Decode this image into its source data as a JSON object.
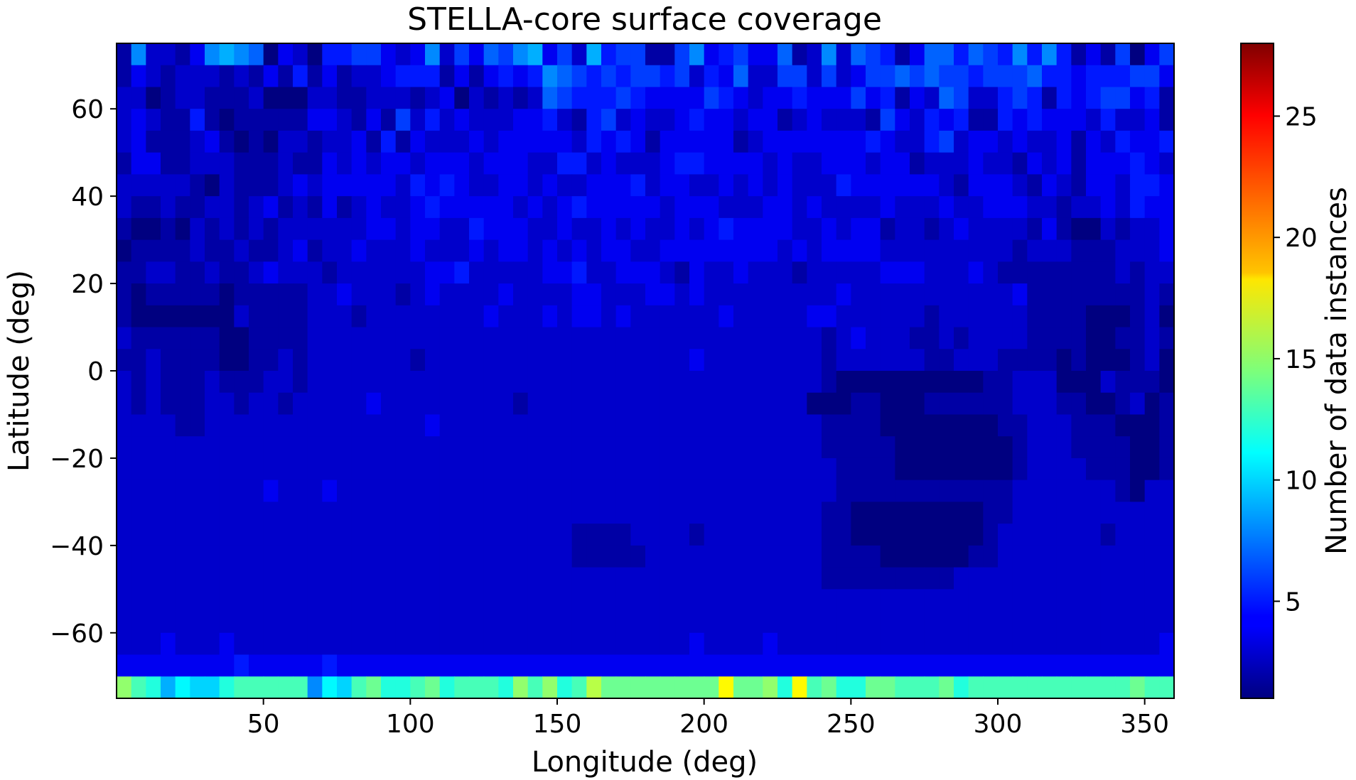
{
  "chart_data": {
    "type": "heatmap",
    "title": "STELLA-core surface coverage",
    "xlabel": "Longitude (deg)",
    "ylabel": "Latitude (deg)",
    "xlim": [
      0,
      360
    ],
    "ylim": [
      -75,
      75
    ],
    "xticks": [
      50,
      100,
      150,
      200,
      250,
      300,
      350
    ],
    "xtick_labels": [
      "50",
      "100",
      "150",
      "200",
      "250",
      "300",
      "350"
    ],
    "yticks": [
      60,
      40,
      20,
      0,
      -20,
      -40,
      -60
    ],
    "ytick_labels": [
      "60",
      "40",
      "20",
      "0",
      "−20",
      "−40",
      "−60"
    ],
    "colorbar": {
      "label": "Number of data instances",
      "range": [
        1,
        28
      ],
      "ticks": [
        5,
        10,
        15,
        20,
        25
      ],
      "tick_labels": [
        "5",
        "10",
        "15",
        "20",
        "25"
      ],
      "colormap": "jet"
    },
    "grid": {
      "lon_bins": 72,
      "lat_bins": 30,
      "bin_size_deg": 5,
      "rows_order": "north-to-south",
      "rows": [
        "BHCCBDHIHGADCAEEFFDCDHCFDGFHIDFCIEFFBBFHDEFDDGBCHCGFEBDGGEGFEHEHEBDBFADF",
        "BDCBCCCBCBDBEBDBCCDEEEBDBDEDEHGFEFEFFEFCEDGCCFFCFCDFFGFGFFEFFFGEEDEEEFFD",
        "CCABCCBBBCAAACCBBCCCBCDACBCBCGFEEEFEDDDDFEDCDDEDDDFDEBDCGFCCEFEBEDEFFDEB",
        "CDCBBEBABBBBBDDCBDBFCECDCCCDDECBEFCDCCDEDDCDDBCDCCCBFDCEDEBBEDEDDDCECCDB",
        "CDBBBCDBABACCBCCDBEBDCCCDCDDDDDCEDEDBDDDDDBCDDDDDDDEDCCEFCDDCDCCDBDCEDDE",
        "BDDBBCCCBBBCBBDCDCDDCDDDCDDDCCEECDCCCDEEDDDDCDCCDDDCDDBCCCDCCBDCDBDDDEDC",
        "CCCCCBACBBBCDCDDDDDCEDEDCCDDCDCCDDDECDDCCDCDCDCCCEDDDDDDCBDDDCBDCBDDCEED",
        "CBBCBBCCBCDBCBDBCDCCDEDDDDDCDCDEDDDDDCDDDCCCDDCDCCCCDCCCDCCDDDCCBCCDCEDD",
        "BAABACBCBCBCCCCCCDDCDDCCEDDDCCDCCDCDCCDCDEDDDDCCDCDDBCCBCDCCCCBDBAACBCCD",
        "ABBBBCBBCBBCDBCCDCCCDCCCDCDDCDCDCDDCCDDDDDDDDCDCDDDDCCCCCCCCCBCCCBBBCCCD",
        "BBCCBBCBBCDCCCBCCCCCCDDECCCCCDDECCDDDCBDCCDCCCBCCCCCDDDCCCDCBBBBBBBBCBCC",
        "BABBBBBABBBBBCCDCCCBCDCCCCDCCCCDDCCCDDCDCCCCCCCCCDCCCCCCCCCCCDBBBBBBBBCB",
        "BAAAAAAACBBBBCCCBCCCCCCCCDCCCDCDDCDCCCCCCDCCCCCDDCCCCCCBCCCCCCBBBBAAABCA",
        "CBBBBBBAABBBBCCCCCCCCCCCCCCCCCCCCCCCCCCCCCCCCCCCBCDCCCBBCBCCCCBBBBAABBCB",
        "BBCBBBBAABBCBCCCCCCCBCCCCCCCCCCCCCCCCCCDCCCCCCCCBCCCCCCBBCCCBBBBABAAABCA",
        "CBCBBBCBBBCCBCCCCCCCCCCCCCCCCCCCCCCCCCCCCCCCCCCCBAAAAAAAAAABBCCCAAACBBBA",
        "CBCBBBCCBCCBCCCCCDCCCCCCCCCBCCCCCCCCCCCCCCCCCCCAAABBAAABBBBBBCCCBBAABCAB",
        "CCCCBBCCCCCCCCCCCCCCCDCCCCCCCCCCCCCCCCCCCCCCCCCCBBBBAAAAAAAABBCCCBBBAAAB",
        "CCCCCCCCCCCCCCCCCCCCCCCCCCCCCCCCCCCCCCCCCCCCCCCCBBBBBAAAAAAAABCCCBBBBAAB",
        "CCCCCCCCCCCCCCCCCCCCCCCCCCCCCCCCCCCCCCCCCCCCCCCCCBBBBAAAAAAAABCCCCBBBAAB",
        "CCCCCCCCCCDCCCDCCCCCCCCCCCCCCCCCCCCCCCCCCCCCCCCCCBBBBBBBBBBBBCCCCCCCBACC",
        "CCCCCCCCCCCCCCCCCCCCCCCCCCCCCCCCCCCCCCCCCCCCCCCCBBAAAAAAAAABBCCCCCCCCCCC",
        "CCCCCCCCCCCCCCCCCCCCCCCCCCCCCCCBBBBCCCCBCCCCCCCCBBAAAAAAAAABCCCCCCCBCCCC",
        "CCCCCCCCCCCCCCCCCCCCCCCCCCCCCCCBBBBBCCCCCCCCCCCCBBBBAAAAAABBCCCCCCCCCCCC",
        "CCCCCCCCCCCCCCCCCCCCCCCCCCCCCCCCCCCCCCCCCCCCCCCCBBBBBBBBBCCCCCCCCCCCCCCC",
        "CCCCCCCCCCCCCCCCCCCCCCCCCCCCCCCCCCCCCCCCCCCCCCCCCCCCCCCCCCCCCCCCCCCCCCCC",
        "CCCCCCCCCCCCCCCCCCCCCCCCCCCCCCCCCCCCCCCCCCCCCCCCCCCCCCCCCCCCCCCCCCCCCCCC",
        "CCCDCCCDCCCCCCCCCCCCCCCCCCCCCCCCCCCCCCCDCCCCDCCCCCCCCCCCCCCCCCCCCCCCCCCD",
        "DDDDDDDDEDDDDDEDDDDDDDDDDDDDDDDDDDDDDDDDDDDDDDDDDDDDDDDDDDDDDDDDDDDDDDDD",
        "OMLIKJJLMMMMMHKJMNLLMNLMMMLOMOLMPNNNNNNNNRNNOLRMNLLNNMMMNLMMMMMMMMMMMNMM"
      ],
      "row_key": "letter code = count: A=1, B=2, C=3 ... Z=26, a=27, b=28"
    }
  }
}
